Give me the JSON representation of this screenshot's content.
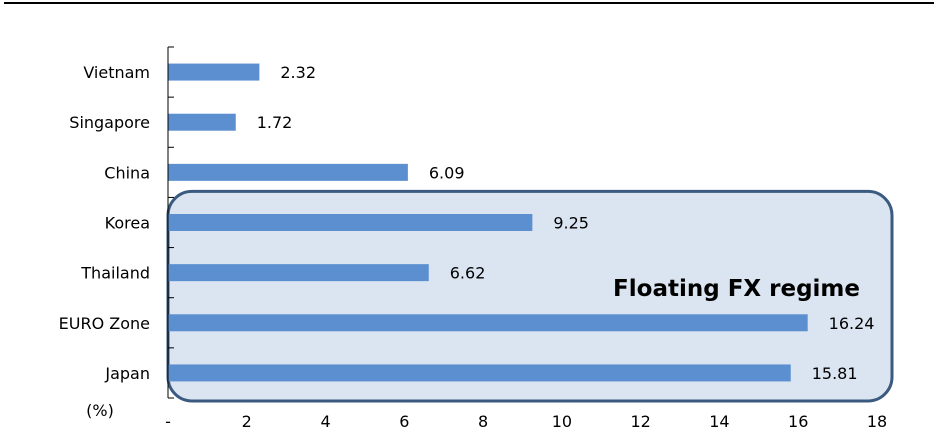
{
  "chart_data": {
    "type": "bar",
    "orientation": "horizontal",
    "categories": [
      "Vietnam",
      "Singapore",
      "China",
      "Korea",
      "Thailand",
      "EURO Zone",
      "Japan"
    ],
    "values": [
      2.32,
      1.72,
      6.09,
      9.25,
      6.62,
      16.24,
      15.81
    ],
    "value_labels": [
      "2.32",
      "1.72",
      "6.09",
      "9.25",
      "6.62",
      "16.24",
      "15.81"
    ],
    "xlim": [
      0,
      18
    ],
    "x_ticks": [
      "-",
      "2",
      "4",
      "6",
      "8",
      "10",
      "12",
      "14",
      "16",
      "18"
    ],
    "unit_label": "(%)",
    "title": "",
    "grid": false,
    "legend": false,
    "annotation": {
      "text": "Floating FX regime",
      "highlighted_categories": [
        "Korea",
        "Thailand",
        "EURO Zone",
        "Japan"
      ]
    },
    "colors": {
      "bar": "#5b8fd0",
      "highlight_fill": "#dbe5f1",
      "highlight_border": "#3a5a80",
      "top_rule": "#000000",
      "axis": "#000000"
    }
  }
}
